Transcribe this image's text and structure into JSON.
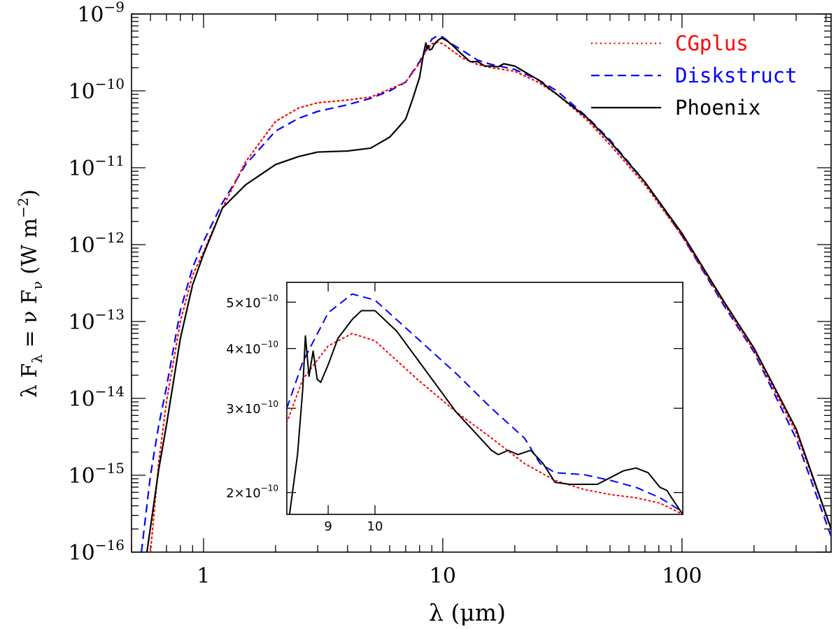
{
  "chart_data": [
    {
      "type": "line",
      "xlabel": "λ (μm)",
      "ylabel": "λ F_λ = ν F_ν (W m⁻²)",
      "x_scale": "log",
      "y_scale": "log",
      "xlim": [
        0.5,
        420
      ],
      "ylim": [
        1e-16,
        1e-09
      ],
      "x_ticks": [
        {
          "value": 1,
          "label": "1"
        },
        {
          "value": 10,
          "label": "10"
        },
        {
          "value": 100,
          "label": "100"
        }
      ],
      "y_ticks": [
        {
          "value": 1e-16,
          "base": "10",
          "exp": "−16"
        },
        {
          "value": 1e-15,
          "base": "10",
          "exp": "−15"
        },
        {
          "value": 1e-14,
          "base": "10",
          "exp": "−14"
        },
        {
          "value": 1e-13,
          "base": "10",
          "exp": "−13"
        },
        {
          "value": 1e-12,
          "base": "10",
          "exp": "−12"
        },
        {
          "value": 1e-11,
          "base": "10",
          "exp": "−11"
        },
        {
          "value": 1e-10,
          "base": "10",
          "exp": "−10"
        },
        {
          "value": 1e-09,
          "base": "10",
          "exp": "−9"
        }
      ],
      "legend_position": "top-right",
      "series": [
        {
          "name": "CGplus",
          "color": "#ff0000",
          "style": "dotted",
          "points": [
            [
              0.6,
              1e-16
            ],
            [
              0.65,
              1.5e-15
            ],
            [
              0.7,
              9e-15
            ],
            [
              0.8,
              1e-13
            ],
            [
              0.9,
              4e-13
            ],
            [
              1.0,
              8e-13
            ],
            [
              1.2,
              3e-12
            ],
            [
              1.5,
              1.2e-11
            ],
            [
              2.0,
              4e-11
            ],
            [
              2.5,
              6e-11
            ],
            [
              3.0,
              7e-11
            ],
            [
              4.0,
              7.6e-11
            ],
            [
              5.0,
              8.3e-11
            ],
            [
              6.0,
              1.05e-10
            ],
            [
              7.0,
              1.3e-10
            ],
            [
              8.0,
              2.3e-10
            ],
            [
              8.5,
              3.3e-10
            ],
            [
              9.0,
              4.1e-10
            ],
            [
              9.5,
              4.3e-10
            ],
            [
              10.0,
              4.1e-10
            ],
            [
              11.0,
              3.3e-10
            ],
            [
              12.0,
              2.7e-10
            ],
            [
              14.0,
              2.2e-10
            ],
            [
              16.0,
              2e-10
            ],
            [
              20.0,
              1.8e-10
            ],
            [
              25.0,
              1.3e-10
            ],
            [
              30.0,
              9e-11
            ],
            [
              40.0,
              4.2e-11
            ],
            [
              50.0,
              2e-11
            ],
            [
              70.0,
              6e-12
            ],
            [
              100.0,
              1.3e-12
            ],
            [
              150.0,
              1.7e-13
            ],
            [
              200.0,
              4.2e-14
            ],
            [
              300.0,
              3.6e-15
            ],
            [
              420.0,
              2e-16
            ]
          ]
        },
        {
          "name": "Diskstruct",
          "color": "#0000ff",
          "style": "dashed",
          "points": [
            [
              0.55,
              1e-16
            ],
            [
              0.6,
              1e-15
            ],
            [
              0.65,
              4.5e-15
            ],
            [
              0.7,
              1.4e-14
            ],
            [
              0.8,
              1.4e-13
            ],
            [
              0.9,
              5e-13
            ],
            [
              1.0,
              1.1e-12
            ],
            [
              1.2,
              3.5e-12
            ],
            [
              1.5,
              1.1e-11
            ],
            [
              2.0,
              3e-11
            ],
            [
              2.5,
              4.4e-11
            ],
            [
              3.0,
              5.4e-11
            ],
            [
              4.0,
              6.6e-11
            ],
            [
              5.0,
              8e-11
            ],
            [
              6.0,
              1e-10
            ],
            [
              7.0,
              1.3e-10
            ],
            [
              8.0,
              2.4e-10
            ],
            [
              8.5,
              3.4e-10
            ],
            [
              9.0,
              4.7e-10
            ],
            [
              9.5,
              5.2e-10
            ],
            [
              10.0,
              5e-10
            ],
            [
              11.0,
              4e-10
            ],
            [
              12.0,
              3.4e-10
            ],
            [
              14.0,
              2.5e-10
            ],
            [
              16.0,
              2.2e-10
            ],
            [
              20.0,
              1.9e-10
            ],
            [
              25.0,
              1.4e-10
            ],
            [
              30.0,
              1e-10
            ],
            [
              40.0,
              4.6e-11
            ],
            [
              50.0,
              2.3e-11
            ],
            [
              70.0,
              6.5e-12
            ],
            [
              100.0,
              1.3e-12
            ],
            [
              150.0,
              1.6e-13
            ],
            [
              200.0,
              4e-14
            ],
            [
              300.0,
              3e-15
            ],
            [
              420.0,
              1.6e-16
            ]
          ]
        },
        {
          "name": "Phoenix",
          "color": "#000000",
          "style": "solid",
          "points": [
            [
              0.58,
              1e-16
            ],
            [
              0.65,
              1.2e-15
            ],
            [
              0.7,
              4.5e-15
            ],
            [
              0.8,
              6e-14
            ],
            [
              0.9,
              3e-13
            ],
            [
              1.0,
              7.5e-13
            ],
            [
              1.2,
              3e-12
            ],
            [
              1.5,
              6e-12
            ],
            [
              2.0,
              1.1e-11
            ],
            [
              2.5,
              1.4e-11
            ],
            [
              3.0,
              1.6e-11
            ],
            [
              4.0,
              1.65e-11
            ],
            [
              5.0,
              1.8e-11
            ],
            [
              6.0,
              2.5e-11
            ],
            [
              6.5,
              3.3e-11
            ],
            [
              7.0,
              4.3e-11
            ],
            [
              7.5,
              8e-11
            ],
            [
              8.0,
              1.5e-10
            ],
            [
              8.3,
              3e-10
            ],
            [
              8.5,
              4.2e-10
            ],
            [
              8.6,
              3.5e-10
            ],
            [
              8.7,
              3.9e-10
            ],
            [
              8.8,
              3.4e-10
            ],
            [
              9.0,
              3.5e-10
            ],
            [
              9.2,
              4e-10
            ],
            [
              9.5,
              4.5e-10
            ],
            [
              9.8,
              4.8e-10
            ],
            [
              10.0,
              4.8e-10
            ],
            [
              10.5,
              4.4e-10
            ],
            [
              11.0,
              3.9e-10
            ],
            [
              12.0,
              3e-10
            ],
            [
              13.0,
              2.4e-10
            ],
            [
              14.0,
              2.4e-10
            ],
            [
              15.0,
              2.1e-10
            ],
            [
              16.0,
              2.1e-10
            ],
            [
              17.0,
              2.05e-10
            ],
            [
              18.0,
              2.25e-10
            ],
            [
              20.0,
              2.1e-10
            ],
            [
              25.0,
              1.4e-10
            ],
            [
              30.0,
              9e-11
            ],
            [
              40.0,
              4.5e-11
            ],
            [
              50.0,
              2.2e-11
            ],
            [
              70.0,
              6.5e-12
            ],
            [
              100.0,
              1.4e-12
            ],
            [
              150.0,
              1.8e-13
            ],
            [
              200.0,
              4.5e-14
            ],
            [
              300.0,
              4e-15
            ],
            [
              420.0,
              2e-16
            ]
          ]
        }
      ]
    },
    {
      "type": "line",
      "inset": true,
      "x_scale": "log",
      "y_scale": "log",
      "xlim": [
        8.2,
        20.0
      ],
      "ylim": [
        1.8e-10,
        5.5e-10
      ],
      "x_ticks": [
        {
          "value": 9,
          "label": "9"
        },
        {
          "value": 10,
          "label": "10"
        }
      ],
      "y_ticks": [
        {
          "value": 2e-10,
          "label": "2×10",
          "exp": "−10"
        },
        {
          "value": 3e-10,
          "label": "3×10",
          "exp": "−10"
        },
        {
          "value": 4e-10,
          "label": "4×10",
          "exp": "−10"
        },
        {
          "value": 5e-10,
          "label": "5×10",
          "exp": "−10"
        }
      ],
      "series": [
        {
          "name": "CGplus",
          "color": "#ff0000",
          "style": "dotted",
          "points": [
            [
              8.2,
              2.8e-10
            ],
            [
              8.5,
              3.45e-10
            ],
            [
              9.0,
              4.05e-10
            ],
            [
              9.5,
              4.3e-10
            ],
            [
              10.0,
              4.15e-10
            ],
            [
              11.0,
              3.45e-10
            ],
            [
              12.0,
              2.95e-10
            ],
            [
              13.0,
              2.6e-10
            ],
            [
              14.0,
              2.3e-10
            ],
            [
              15.0,
              2.12e-10
            ],
            [
              16.0,
              2.03e-10
            ],
            [
              17.0,
              1.98e-10
            ],
            [
              18.0,
              1.95e-10
            ],
            [
              19.0,
              1.9e-10
            ],
            [
              20.0,
              1.8e-10
            ]
          ]
        },
        {
          "name": "Diskstruct",
          "color": "#0000ff",
          "style": "dashed",
          "points": [
            [
              8.2,
              3e-10
            ],
            [
              8.5,
              3.75e-10
            ],
            [
              9.0,
              4.75e-10
            ],
            [
              9.5,
              5.2e-10
            ],
            [
              10.0,
              5.05e-10
            ],
            [
              11.0,
              4.2e-10
            ],
            [
              12.0,
              3.55e-10
            ],
            [
              13.0,
              3e-10
            ],
            [
              14.0,
              2.6e-10
            ],
            [
              14.5,
              2.3e-10
            ],
            [
              15.0,
              2.2e-10
            ],
            [
              16.0,
              2.18e-10
            ],
            [
              17.0,
              2.12e-10
            ],
            [
              18.0,
              2.05e-10
            ],
            [
              19.0,
              1.95e-10
            ],
            [
              20.0,
              1.82e-10
            ]
          ]
        },
        {
          "name": "Phoenix",
          "color": "#000000",
          "style": "solid",
          "points": [
            [
              8.25,
              1.8e-10
            ],
            [
              8.4,
              2.4e-10
            ],
            [
              8.5,
              3.3e-10
            ],
            [
              8.55,
              4.25e-10
            ],
            [
              8.62,
              3.5e-10
            ],
            [
              8.7,
              3.95e-10
            ],
            [
              8.78,
              3.45e-10
            ],
            [
              8.85,
              3.4e-10
            ],
            [
              9.0,
              3.7e-10
            ],
            [
              9.2,
              4.2e-10
            ],
            [
              9.5,
              4.6e-10
            ],
            [
              9.7,
              4.8e-10
            ],
            [
              10.0,
              4.8e-10
            ],
            [
              10.5,
              4.35e-10
            ],
            [
              11.0,
              3.8e-10
            ],
            [
              12.0,
              2.95e-10
            ],
            [
              13.0,
              2.45e-10
            ],
            [
              13.2,
              2.4e-10
            ],
            [
              13.5,
              2.45e-10
            ],
            [
              13.8,
              2.4e-10
            ],
            [
              14.2,
              2.45e-10
            ],
            [
              14.6,
              2.3e-10
            ],
            [
              15.0,
              2.1e-10
            ],
            [
              15.5,
              2.08e-10
            ],
            [
              16.0,
              2.08e-10
            ],
            [
              16.5,
              2.08e-10
            ],
            [
              17.0,
              2.15e-10
            ],
            [
              17.5,
              2.22e-10
            ],
            [
              18.0,
              2.25e-10
            ],
            [
              18.5,
              2.2e-10
            ],
            [
              19.0,
              2.05e-10
            ],
            [
              19.3,
              2.02e-10
            ],
            [
              19.5,
              1.95e-10
            ],
            [
              20.0,
              1.8e-10
            ]
          ]
        }
      ]
    }
  ]
}
